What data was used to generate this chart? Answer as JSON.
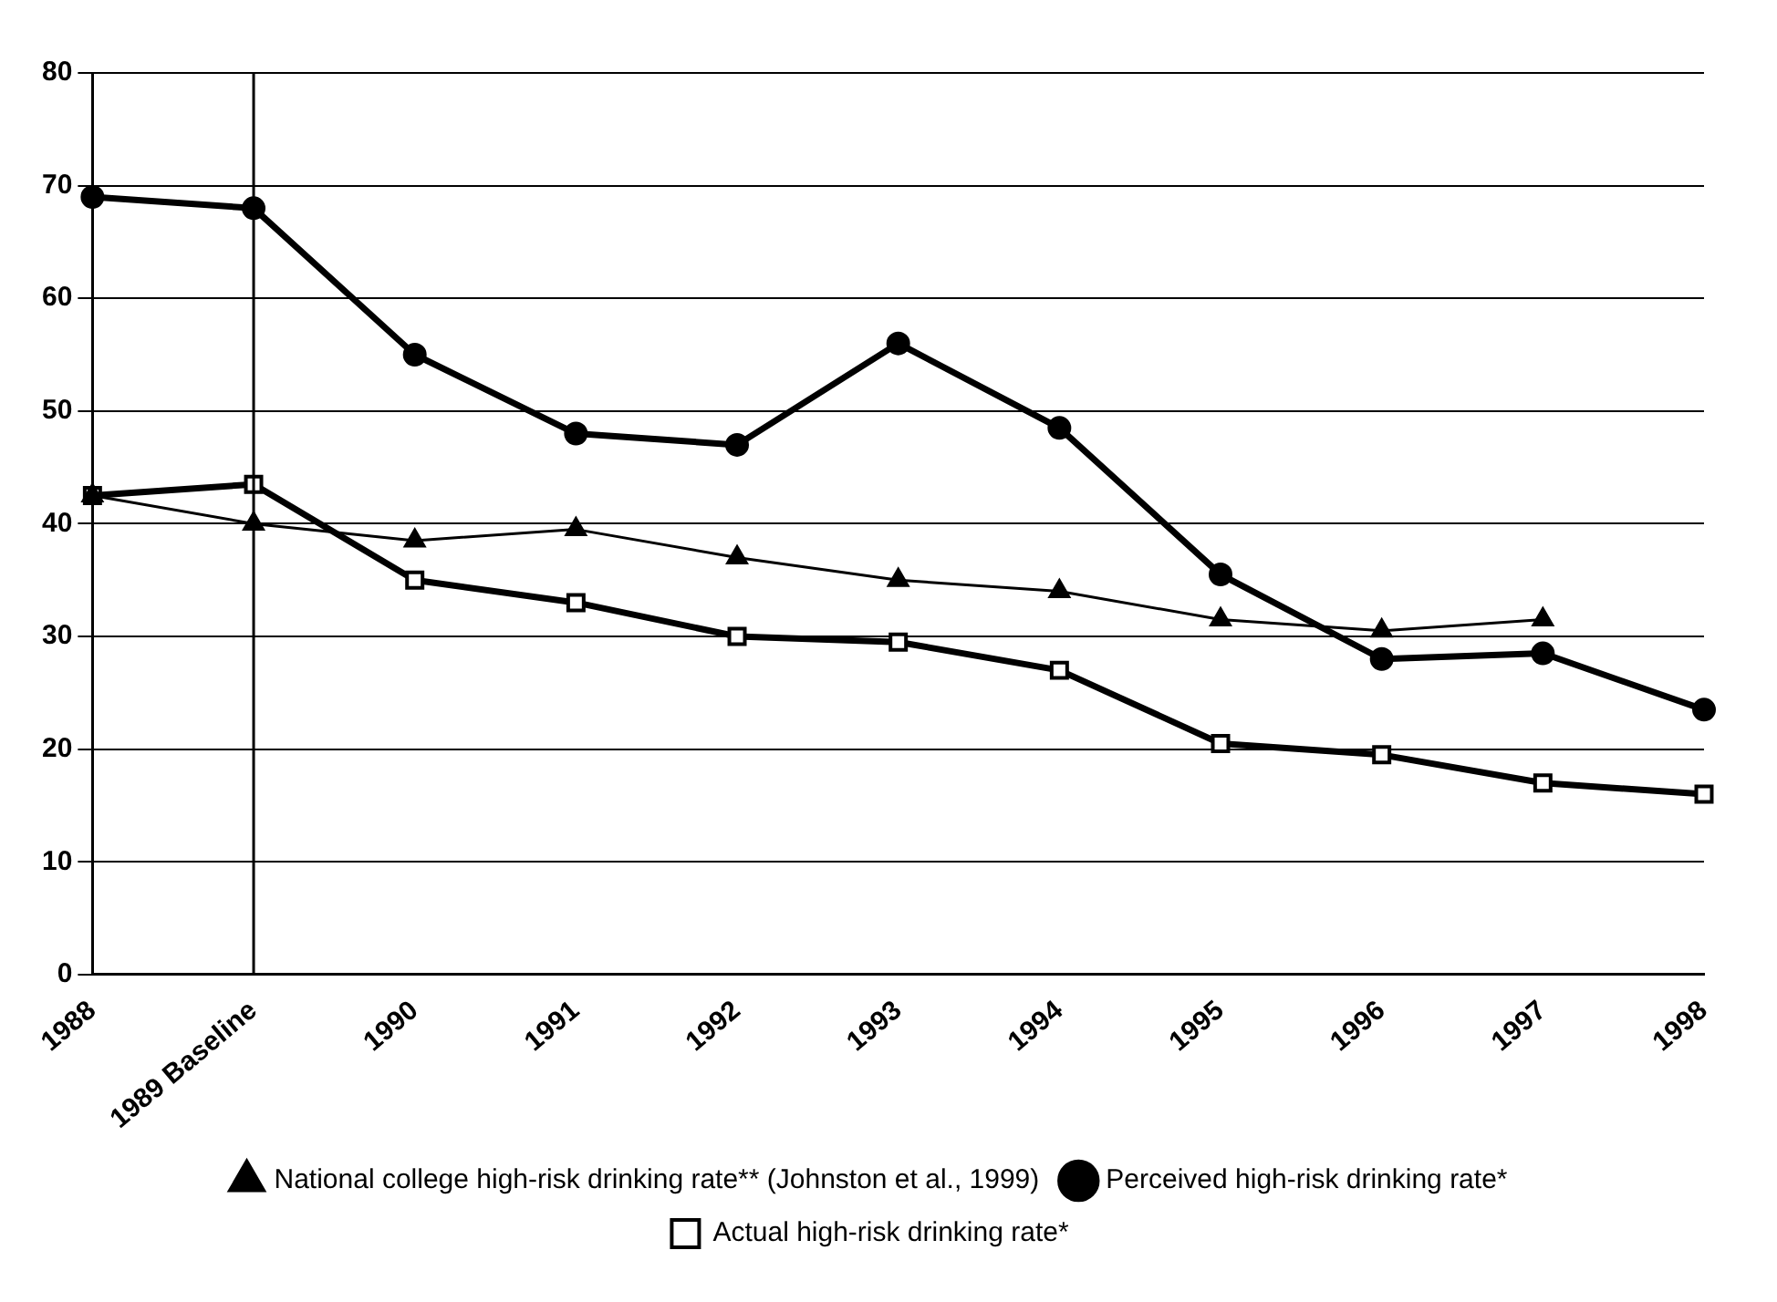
{
  "chart_data": {
    "type": "line",
    "categories": [
      "1988",
      "1989 Baseline",
      "1990",
      "1991",
      "1992",
      "1993",
      "1994",
      "1995",
      "1996",
      "1997",
      "1998"
    ],
    "series": [
      {
        "name": "Perceived high-risk drinking rate*",
        "color": "#000000",
        "marker": "circle",
        "values": [
          69,
          68,
          55,
          48,
          47,
          56,
          48.5,
          35.5,
          28,
          28.5,
          23.5
        ]
      },
      {
        "name": "Actual high-risk drinking rate*",
        "color": "#000000",
        "marker": "square",
        "values": [
          42.5,
          43.5,
          35,
          33,
          30,
          29.5,
          27,
          20.5,
          19.5,
          17,
          16
        ]
      },
      {
        "name": "National college high-risk drinking rate** (Johnston et al., 1999)",
        "color": "#000000",
        "marker": "triangle",
        "values": [
          42.5,
          40,
          38.5,
          39.5,
          37,
          35,
          34,
          31.5,
          30.5,
          31.5,
          null
        ]
      }
    ],
    "ylim": [
      0,
      80
    ],
    "yticks": [
      0,
      10,
      20,
      30,
      40,
      50,
      60,
      70,
      80
    ],
    "grid": "y",
    "legend": "bottom",
    "line_style": "solid",
    "ref_lines": [
      {
        "axis": "x",
        "value": "1989 Baseline",
        "color": "#000000"
      }
    ]
  }
}
